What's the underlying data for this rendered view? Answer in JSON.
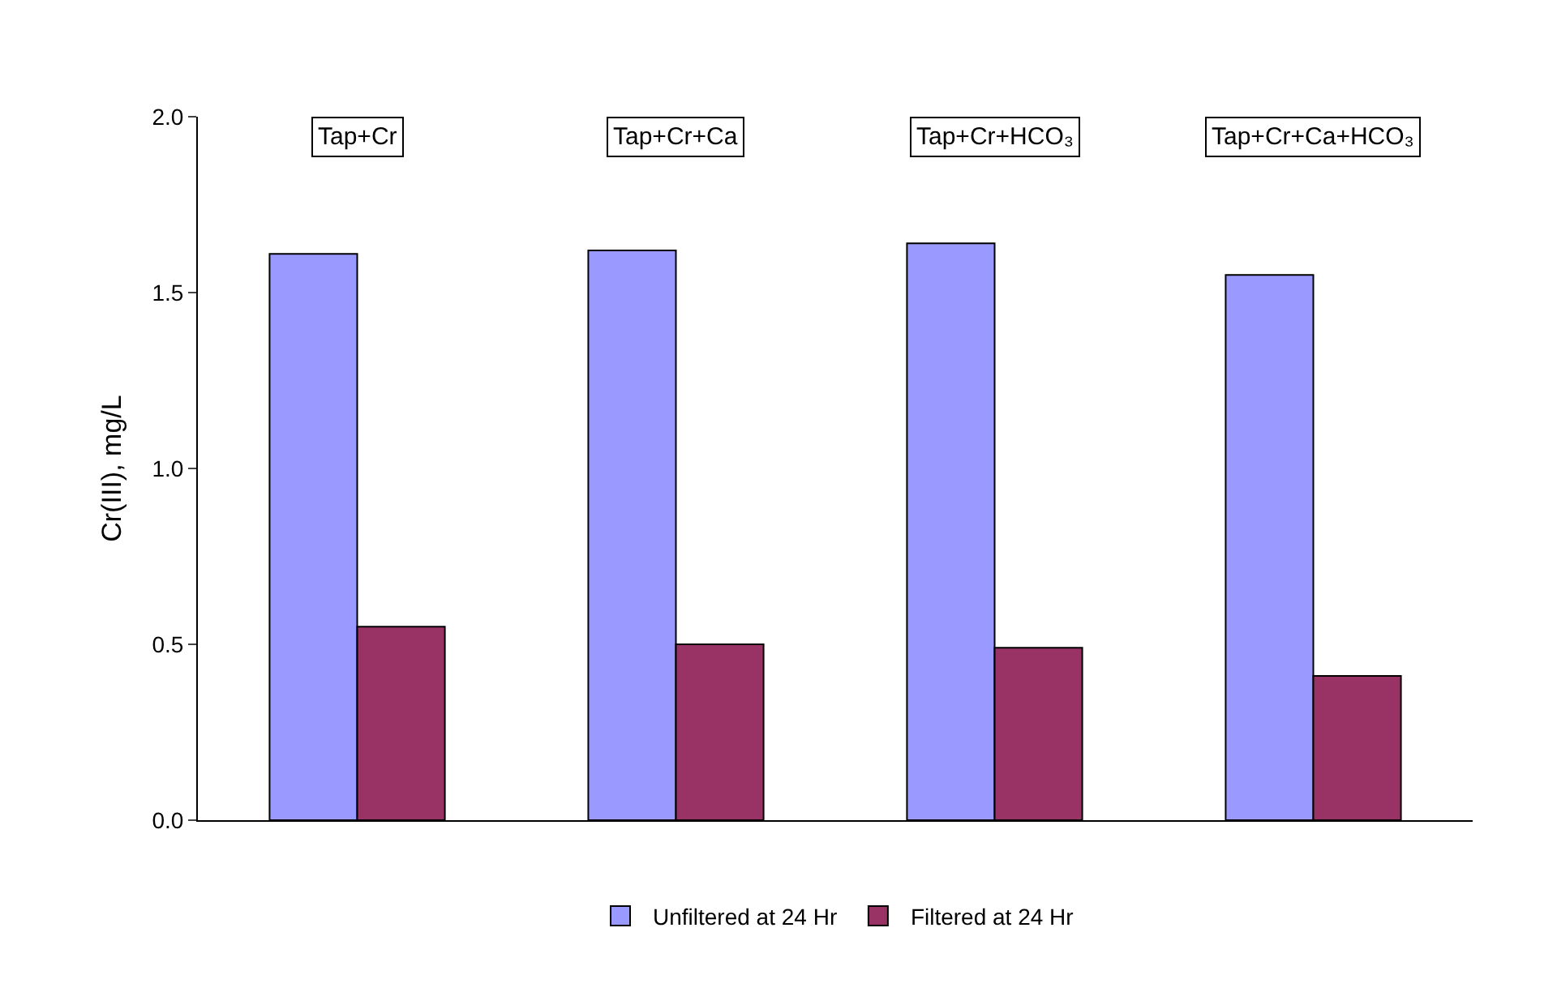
{
  "chart_data": {
    "type": "bar",
    "ylabel": "Cr(III), mg/L",
    "categories": [
      "Tap+Cr",
      "Tap+Cr+Ca",
      "Tap+Cr+HCO₃",
      "Tap+Cr+Ca+HCO₃"
    ],
    "series": [
      {
        "name": "Unfiltered at 24 Hr",
        "color": "#9999ff",
        "values": [
          1.61,
          1.62,
          1.64,
          1.55
        ]
      },
      {
        "name": "Filtered at 24 Hr",
        "color": "#993366",
        "values": [
          0.55,
          0.5,
          0.49,
          0.41
        ]
      }
    ],
    "ylim": [
      0,
      2
    ],
    "yticks": [
      {
        "value": 0,
        "label": "0.0"
      },
      {
        "value": 0.5,
        "label": "0.5"
      },
      {
        "value": 1,
        "label": "1.0"
      },
      {
        "value": 1.5,
        "label": "1.5"
      },
      {
        "value": 2,
        "label": "2.0"
      }
    ],
    "grid": false,
    "legend": "bottom",
    "tick_labels": "y"
  }
}
